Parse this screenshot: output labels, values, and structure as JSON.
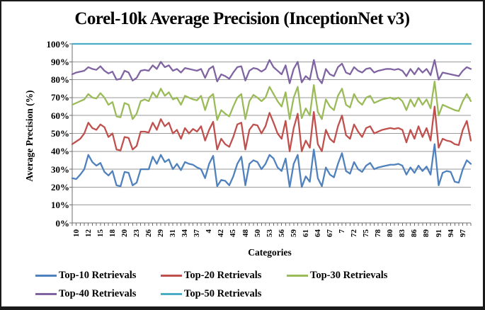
{
  "chart_data": {
    "type": "line",
    "title": "Corel-10k Average Precision (InceptionNet v3)",
    "xlabel": "Categories",
    "ylabel": "Average Precision (%)",
    "ylim": [
      0,
      100
    ],
    "y_tick_step": 10,
    "y_tick_labels": [
      "0%",
      "10%",
      "20%",
      "30%",
      "40%",
      "50%",
      "60%",
      "70%",
      "80%",
      "90%",
      "100%"
    ],
    "n_points": 100,
    "x_tick_indices": [
      1,
      4,
      7,
      10,
      13,
      16,
      19,
      22,
      25,
      28,
      31,
      34,
      37,
      40,
      43,
      46,
      49,
      52,
      55,
      58,
      61,
      64,
      67,
      70,
      73,
      76,
      79,
      82,
      85,
      88,
      91,
      94,
      97
    ],
    "x_tick_labels": [
      "10",
      "12",
      "15",
      "18",
      "20",
      "23",
      "26",
      "29",
      "31",
      "34",
      "37",
      "4",
      "42",
      "45",
      "48",
      "50",
      "53",
      "56",
      "59",
      "61",
      "64",
      "67",
      "7",
      "72",
      "75",
      "78",
      "80",
      "83",
      "86",
      "89",
      "91",
      "94",
      "97"
    ],
    "grid": "horizontal",
    "grid_color": "#9a9a9a",
    "axis_color": "#6e6e6e",
    "legend_position": "bottom",
    "series": [
      {
        "name": "Top-10 Retrievals",
        "color": "#4F81BD",
        "values": [
          25,
          24.5,
          27,
          30,
          38,
          34,
          32,
          33.5,
          28.5,
          26.5,
          29,
          21,
          20.5,
          28.5,
          28,
          21,
          22.5,
          30,
          30,
          30,
          37,
          33,
          38,
          34,
          35.5,
          30,
          33,
          29.5,
          34,
          33,
          32.5,
          31,
          30,
          25,
          33,
          37.5,
          20.5,
          24,
          23.5,
          21,
          26,
          33,
          37,
          21,
          33,
          35,
          34,
          30,
          33,
          38,
          36,
          31,
          29,
          36,
          20,
          33,
          38,
          20,
          26,
          23,
          41,
          25,
          20.5,
          31,
          27,
          25.5,
          33,
          39,
          29,
          27.5,
          34,
          30,
          28.5,
          32,
          33.5,
          30,
          31,
          31.5,
          32,
          32.5,
          32.5,
          33,
          32,
          27,
          31,
          28,
          32,
          29,
          31.5,
          27,
          44,
          21,
          28,
          29,
          28.5,
          23,
          22.5,
          30,
          35,
          33
        ]
      },
      {
        "name": "Top-20 Retrievals",
        "color": "#C0504D",
        "values": [
          44,
          45.5,
          47,
          50,
          56,
          53,
          52,
          55,
          53.5,
          48,
          50,
          41,
          40.5,
          48,
          47.5,
          41,
          43,
          51,
          51,
          50.5,
          56,
          52,
          58,
          54,
          56,
          50,
          52,
          47,
          53,
          50,
          52.5,
          51,
          54,
          46,
          52,
          56.5,
          41,
          47,
          44,
          42.5,
          48,
          55,
          56,
          41,
          52,
          55,
          54.5,
          50,
          54,
          61.5,
          56,
          50,
          47,
          57,
          40,
          53,
          61,
          40,
          46,
          42,
          62,
          44,
          40,
          52,
          47,
          45,
          54,
          60,
          49,
          47,
          55,
          51,
          48,
          53,
          54,
          50,
          51,
          52,
          52.5,
          53,
          52.5,
          53,
          52,
          45,
          52,
          47,
          54,
          48,
          53,
          46,
          65,
          42,
          47,
          46,
          45.5,
          44,
          43.5,
          52,
          57,
          46
        ]
      },
      {
        "name": "Top-30 Retrievals",
        "color": "#9BBB59",
        "values": [
          66,
          67,
          68,
          69,
          72,
          70,
          69.5,
          72.5,
          70,
          66,
          67.5,
          59.5,
          59,
          67,
          66,
          58,
          61,
          68,
          69,
          68,
          73,
          70,
          75,
          71,
          73,
          69,
          70,
          66,
          71,
          70,
          69,
          68.5,
          71,
          63,
          70,
          72,
          57.5,
          63,
          61,
          59.5,
          65,
          70,
          72,
          58,
          68,
          71.5,
          70,
          68,
          70,
          76,
          72,
          68,
          65,
          73,
          58,
          70,
          76,
          58.5,
          64,
          60,
          77,
          62,
          58,
          69,
          65,
          63,
          71,
          75,
          66,
          64.5,
          72,
          68,
          66,
          70,
          71,
          67,
          68,
          69,
          69.5,
          70,
          69,
          70,
          68,
          63,
          69,
          65,
          70,
          66,
          69,
          64,
          79,
          60,
          66,
          65,
          64,
          63,
          62.5,
          68,
          72,
          68
        ]
      },
      {
        "name": "Top-40 Retrievals",
        "color": "#8064A2",
        "values": [
          83,
          84,
          84.5,
          85,
          87,
          86,
          85.5,
          87.5,
          85,
          83.5,
          84.5,
          80,
          80.5,
          85,
          84,
          79.5,
          81,
          85,
          85.5,
          85,
          88,
          86,
          90,
          87,
          88,
          85,
          86,
          84,
          86.5,
          86,
          85.5,
          85,
          86,
          81,
          86,
          87.5,
          79,
          83,
          82,
          80.5,
          84,
          87,
          87.5,
          79.5,
          85,
          86.5,
          86,
          84.5,
          86,
          91,
          87,
          85,
          83,
          88,
          78,
          86,
          90,
          78.5,
          82,
          80,
          91,
          81,
          78,
          86,
          83,
          82,
          87,
          89,
          84,
          83,
          87,
          85,
          84,
          86,
          86.5,
          84,
          85,
          85.5,
          86,
          86,
          85.5,
          86,
          85,
          82,
          86,
          83,
          86.5,
          84,
          86,
          82.5,
          91,
          80,
          84,
          83.5,
          83,
          82.5,
          82,
          85,
          87,
          86
        ]
      },
      {
        "name": "Top-50 Retrievals",
        "color": "#4BACC6",
        "values": [
          100,
          100,
          100,
          100,
          100,
          100,
          100,
          100,
          100,
          100,
          100,
          100,
          100,
          100,
          100,
          100,
          100,
          100,
          100,
          100,
          100,
          100,
          100,
          100,
          100,
          100,
          100,
          100,
          100,
          100,
          100,
          100,
          100,
          100,
          100,
          100,
          100,
          100,
          100,
          100,
          100,
          100,
          100,
          100,
          100,
          100,
          100,
          100,
          100,
          100,
          100,
          100,
          100,
          100,
          100,
          100,
          100,
          100,
          100,
          100,
          100,
          100,
          100,
          100,
          100,
          100,
          100,
          100,
          100,
          100,
          100,
          100,
          100,
          100,
          100,
          100,
          100,
          100,
          100,
          100,
          100,
          100,
          100,
          100,
          100,
          100,
          100,
          100,
          100,
          100,
          100,
          100,
          100,
          100,
          100,
          100,
          100,
          100,
          100,
          100
        ]
      }
    ]
  }
}
